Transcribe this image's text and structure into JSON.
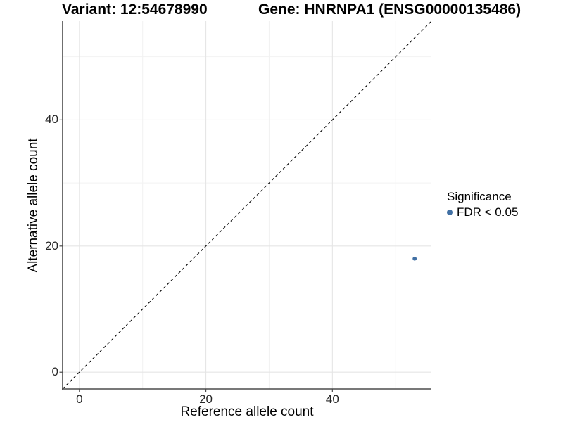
{
  "header": {
    "variant_title": "Variant: 12:54678990",
    "gene_title": "Gene: HNRNPA1 (ENSG00000135486)"
  },
  "axes": {
    "x_label": "Reference allele count",
    "y_label": "Alternative allele count"
  },
  "legend": {
    "title": "Significance",
    "entries": [
      {
        "label": "FDR < 0.05",
        "color": "#4170A4"
      }
    ]
  },
  "colors": {
    "background": "#ffffff",
    "point": "#4170A4",
    "grid_major": "#e5e5e5",
    "grid_minor": "#f2f2f2",
    "axis_line": "#4b4b4b",
    "tick_mark": "#4b4b4b",
    "identity_line": "#111111",
    "tick_text": "#262626"
  },
  "chart_data": {
    "type": "scatter",
    "title": "Variant: 12:54678990 / Gene: HNRNPA1 (ENSG00000135486)",
    "xlabel": "Reference allele count",
    "ylabel": "Alternative allele count",
    "xlim": [
      -2.65,
      55.65
    ],
    "ylim": [
      -2.65,
      55.65
    ],
    "x_major_ticks": [
      0,
      20,
      40
    ],
    "y_major_ticks": [
      0,
      20,
      40
    ],
    "x_minor_ticks": [
      10,
      30,
      50
    ],
    "y_minor_ticks": [
      10,
      30,
      50
    ],
    "grid": "major and minor, light gray on white panel",
    "legend_position": "right-center",
    "reference_line": {
      "style": "dashed",
      "slope": 1,
      "intercept": 0
    },
    "series": [
      {
        "name": "FDR < 0.05",
        "color": "#4170A4",
        "points": [
          {
            "x": 53,
            "y": 18
          }
        ]
      }
    ]
  }
}
